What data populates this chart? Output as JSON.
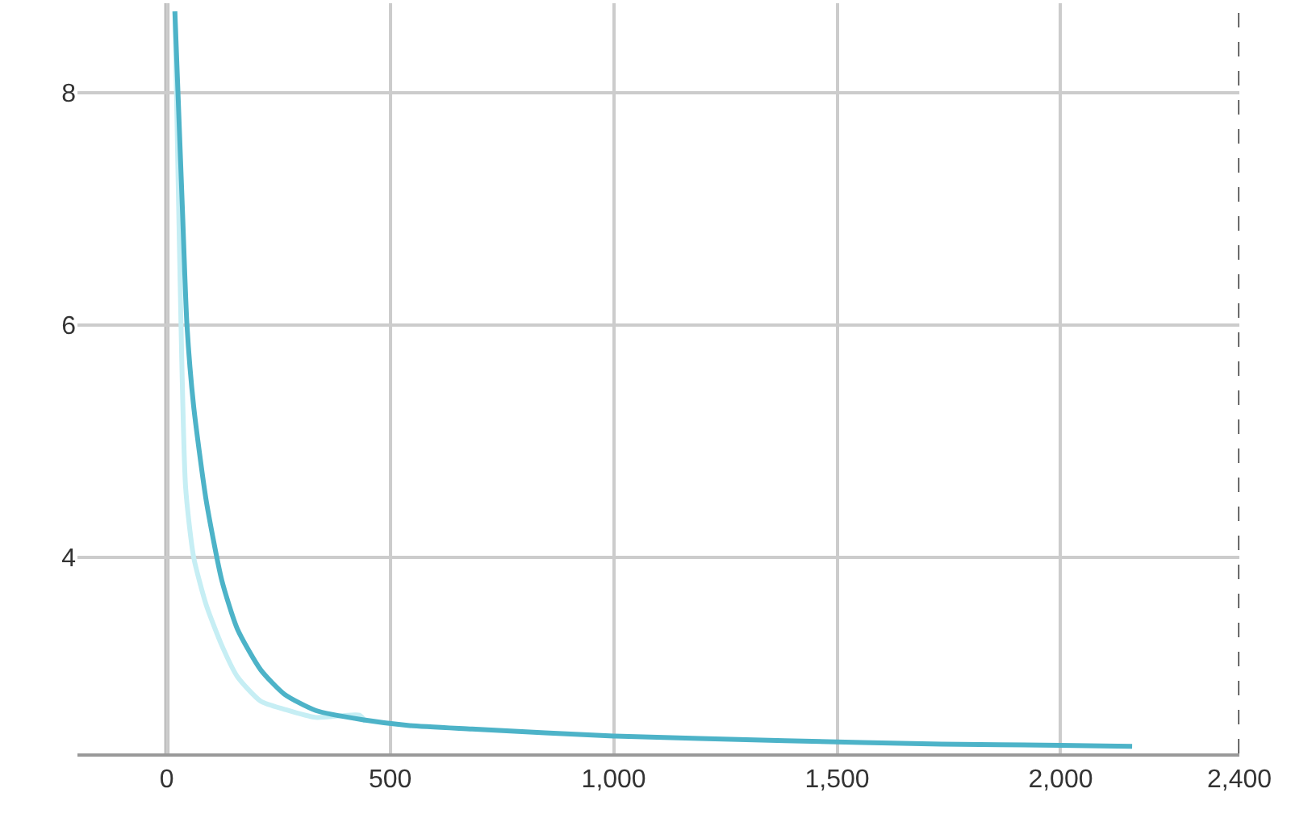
{
  "chart_data": {
    "type": "line",
    "series": [
      {
        "color": "#c6eef4",
        "x": [
          18,
          28,
          42,
          60,
          88,
          123,
          158,
          210,
          263,
          333,
          431,
          445
        ],
        "values": [
          8.7,
          6.7,
          4.6,
          4.0,
          3.59,
          3.24,
          2.97,
          2.76,
          2.69,
          2.62,
          2.64,
          2.58
        ]
      },
      {
        "color": "#4db3c8",
        "x": [
          18,
          35,
          45,
          60,
          88,
          123,
          158,
          210,
          263,
          333,
          438,
          543,
          683,
          1000,
          1383,
          1733,
          2000,
          2160
        ],
        "values": [
          8.7,
          6.98,
          6.0,
          5.3,
          4.49,
          3.8,
          3.38,
          3.03,
          2.82,
          2.68,
          2.6,
          2.55,
          2.52,
          2.46,
          2.42,
          2.39,
          2.38,
          2.37
        ]
      }
    ],
    "xlim": [
      -200,
      2400
    ],
    "ylim": [
      2.31,
      8.77
    ],
    "xticks": [
      0,
      500,
      {
        "value": 1000,
        "label": "1,000"
      },
      {
        "value": 1500,
        "label": "1,500"
      },
      {
        "value": 2000,
        "label": "2,000"
      },
      {
        "value": 2400,
        "label": "2,400"
      }
    ],
    "yticks": [
      4,
      6,
      8
    ],
    "ref_lines": [
      {
        "axis": "x",
        "value": 0,
        "color": "#aaaaaa",
        "line_style": "solid"
      },
      {
        "axis": "x",
        "value": 2400,
        "color": "#333333",
        "line_style": "dashed"
      }
    ],
    "grid": true,
    "legend": false,
    "marker": "none",
    "line_style": "solid"
  }
}
